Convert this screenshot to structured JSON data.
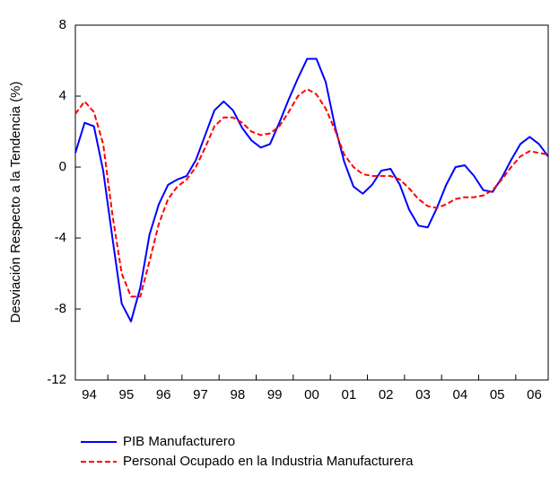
{
  "chart_data": {
    "type": "line",
    "y_label": "Desviación Respecto a la Tendencia (%)",
    "categories": [
      null,
      "94",
      null,
      null,
      null,
      "95",
      null,
      null,
      null,
      "96",
      null,
      null,
      null,
      "97",
      null,
      null,
      null,
      "98",
      null,
      null,
      null,
      "99",
      null,
      null,
      null,
      "00",
      null,
      null,
      null,
      "01",
      null,
      null,
      null,
      "02",
      null,
      null,
      null,
      "03",
      null,
      null,
      null,
      "04",
      null,
      null,
      null,
      "05",
      null,
      null,
      null,
      "06",
      null,
      null
    ],
    "ylim": [
      -12,
      8
    ],
    "yticks": [
      -12,
      -8,
      -4,
      0,
      4,
      8
    ],
    "series": [
      {
        "name": "PIB Manufacturero",
        "color": "#0000ff",
        "dash": false,
        "values": [
          0.8,
          2.5,
          2.3,
          -0.2,
          -4.0,
          -7.7,
          -8.7,
          -6.8,
          -3.8,
          -2.1,
          -1.0,
          -0.7,
          -0.5,
          0.4,
          1.8,
          3.2,
          3.7,
          3.2,
          2.2,
          1.5,
          1.1,
          1.3,
          2.5,
          3.8,
          5.0,
          6.1,
          6.1,
          4.8,
          2.3,
          0.3,
          -1.1,
          -1.5,
          -1.0,
          -0.2,
          -0.1,
          -1.0,
          -2.4,
          -3.3,
          -3.4,
          -2.3,
          -1.0,
          0.0,
          0.1,
          -0.5,
          -1.3,
          -1.4,
          -0.6,
          0.4,
          1.3,
          1.7,
          1.3,
          0.6
        ]
      },
      {
        "name": "Personal Ocupado en la Industria Manufacturera",
        "color": "#ff0000",
        "dash": true,
        "values": [
          3.0,
          3.7,
          3.1,
          1.3,
          -2.7,
          -6.0,
          -7.3,
          -7.3,
          -5.3,
          -3.2,
          -1.8,
          -1.1,
          -0.7,
          0.0,
          1.1,
          2.3,
          2.8,
          2.8,
          2.5,
          2.0,
          1.8,
          1.9,
          2.3,
          3.1,
          4.0,
          4.4,
          4.1,
          3.3,
          2.1,
          0.7,
          0.0,
          -0.4,
          -0.5,
          -0.5,
          -0.5,
          -0.7,
          -1.2,
          -1.8,
          -2.2,
          -2.3,
          -2.1,
          -1.8,
          -1.7,
          -1.7,
          -1.6,
          -1.3,
          -0.7,
          0.0,
          0.6,
          0.9,
          0.8,
          0.7
        ]
      }
    ]
  }
}
